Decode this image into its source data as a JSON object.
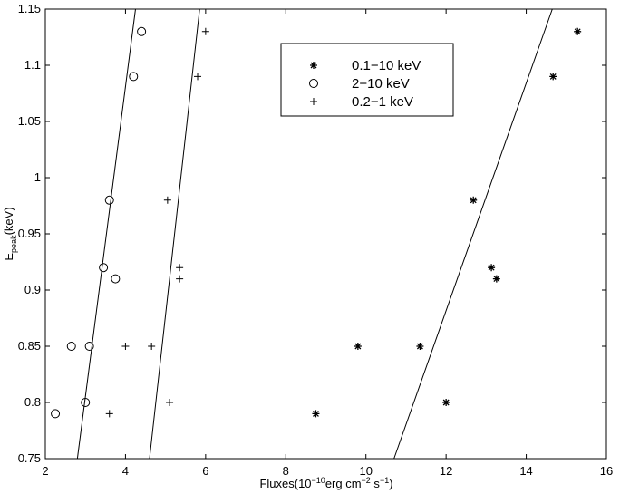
{
  "chart_data": {
    "type": "scatter",
    "xlabel": [
      "Fluxes(10",
      "−10",
      "erg cm",
      "−2",
      " s",
      "−1",
      ")"
    ],
    "ylabel": [
      "E",
      "peak",
      "(keV)"
    ],
    "xlim": [
      2,
      16
    ],
    "xticks": [
      2,
      4,
      6,
      8,
      10,
      12,
      14,
      16
    ],
    "ylim": [
      0.75,
      1.15
    ],
    "yticks": [
      0.75,
      0.8,
      0.85,
      0.9,
      0.95,
      1,
      1.05,
      1.1,
      1.15
    ],
    "legend": "top-center",
    "series": [
      {
        "name": "0.1−10 keV",
        "marker": "star",
        "color": "#000000",
        "x": [
          8.75,
          9.8,
          11.35,
          12.0,
          12.68,
          13.13,
          13.26,
          14.67,
          15.28
        ],
        "values": [
          0.79,
          0.85,
          0.85,
          0.8,
          0.98,
          0.92,
          0.91,
          1.09,
          1.13
        ]
      },
      {
        "name": "2−10 keV",
        "marker": "circle",
        "color": "#000000",
        "x": [
          2.25,
          2.65,
          3.0,
          3.1,
          3.45,
          3.6,
          3.75,
          4.2,
          4.4
        ],
        "values": [
          0.79,
          0.85,
          0.8,
          0.85,
          0.92,
          0.98,
          0.91,
          1.09,
          1.13
        ]
      },
      {
        "name": "0.2−1 keV",
        "marker": "plus",
        "color": "#000000",
        "x": [
          3.6,
          4.0,
          4.65,
          5.05,
          5.1,
          5.35,
          5.35,
          5.8,
          6.0
        ],
        "values": [
          0.79,
          0.85,
          0.85,
          0.98,
          0.8,
          0.92,
          0.91,
          1.09,
          1.13
        ]
      }
    ],
    "fit_lines": [
      {
        "x": [
          2.8,
          4.25
        ],
        "values": [
          0.75,
          1.15
        ]
      },
      {
        "x": [
          4.6,
          5.85
        ],
        "values": [
          0.75,
          1.15
        ]
      },
      {
        "x": [
          10.7,
          14.65
        ],
        "values": [
          0.75,
          1.15
        ]
      }
    ]
  }
}
